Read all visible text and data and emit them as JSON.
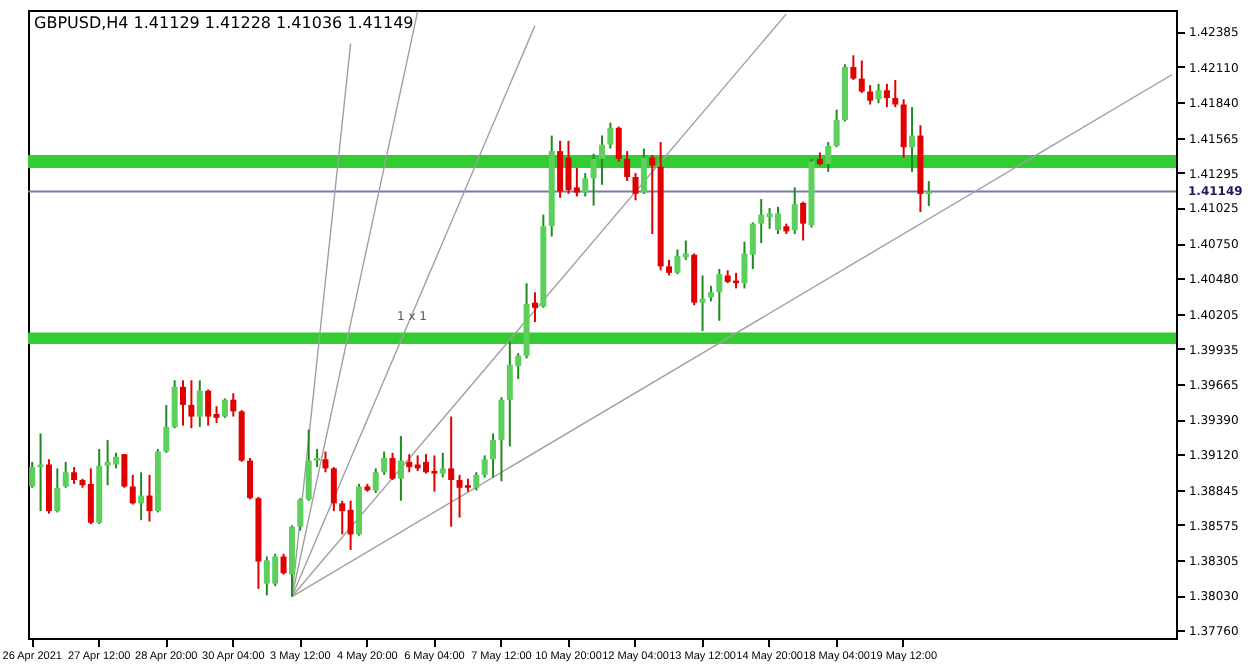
{
  "chart_data": {
    "type": "candlestick",
    "title": "GBPUSD,H4 1.41129 1.41228 1.41036 1.41149",
    "categories": [
      "26 Apr 2021",
      null,
      null,
      null,
      null,
      null,
      null,
      null,
      "27 Apr 12:00",
      null,
      null,
      null,
      null,
      null,
      null,
      null,
      "28 Apr 20:00",
      null,
      null,
      null,
      null,
      null,
      null,
      null,
      "30 Apr 04:00",
      null,
      null,
      null,
      null,
      null,
      null,
      null,
      "3 May 12:00",
      null,
      null,
      null,
      null,
      null,
      null,
      null,
      "4 May 20:00",
      null,
      null,
      null,
      null,
      null,
      null,
      null,
      "6 May 04:00",
      null,
      null,
      null,
      null,
      null,
      null,
      null,
      "7 May 12:00",
      null,
      null,
      null,
      null,
      null,
      null,
      null,
      "10 May 20:00",
      null,
      null,
      null,
      null,
      null,
      null,
      null,
      "12 May 04:00",
      null,
      null,
      null,
      null,
      null,
      null,
      null,
      "13 May 12:00",
      null,
      null,
      null,
      null,
      null,
      null,
      null,
      "14 May 20:00",
      null,
      null,
      null,
      null,
      null,
      null,
      null,
      "18 May 04:00",
      null,
      null,
      null,
      null,
      null,
      null,
      null,
      "19 May 12:00",
      null,
      null,
      null,
      null,
      null,
      null,
      null,
      null,
      null,
      null,
      null,
      null,
      null,
      null,
      null,
      null,
      null,
      null,
      null,
      null,
      null,
      null,
      null,
      null,
      null,
      null,
      null,
      null,
      null,
      null,
      null,
      null
    ],
    "ohlc": [
      [
        1.3887,
        1.3906,
        1.3886,
        1.3902
      ],
      [
        1.3902,
        1.3928,
        1.3868,
        1.3904
      ],
      [
        1.3904,
        1.3908,
        1.3866,
        1.3868
      ],
      [
        1.3868,
        1.3901,
        1.3867,
        1.3886
      ],
      [
        1.3887,
        1.3906,
        1.3886,
        1.3898
      ],
      [
        1.3898,
        1.3902,
        1.3889,
        1.3892
      ],
      [
        1.3892,
        1.3893,
        1.3886,
        1.3888
      ],
      [
        1.3889,
        1.3901,
        1.3858,
        1.3859
      ],
      [
        1.3859,
        1.3916,
        1.3858,
        1.3903
      ],
      [
        1.3903,
        1.3923,
        1.3888,
        1.3906
      ],
      [
        1.3904,
        1.3913,
        1.3901,
        1.391
      ],
      [
        1.3912,
        1.3912,
        1.3886,
        1.3887
      ],
      [
        1.3887,
        1.3896,
        1.3873,
        1.3874
      ],
      [
        1.3874,
        1.3898,
        1.3861,
        1.388
      ],
      [
        1.388,
        1.3896,
        1.386,
        1.3868
      ],
      [
        1.3868,
        1.3916,
        1.3867,
        1.3914
      ],
      [
        1.3914,
        1.395,
        1.3913,
        1.3933
      ],
      [
        1.3933,
        1.3969,
        1.3932,
        1.3964
      ],
      [
        1.3964,
        1.3969,
        1.3934,
        1.395
      ],
      [
        1.395,
        1.3969,
        1.3932,
        1.3941
      ],
      [
        1.3941,
        1.3969,
        1.3933,
        1.3961
      ],
      [
        1.3961,
        1.3962,
        1.3934,
        1.3941
      ],
      [
        1.3943,
        1.3949,
        1.3936,
        1.394
      ],
      [
        1.3941,
        1.3955,
        1.394,
        1.3954
      ],
      [
        1.3954,
        1.3959,
        1.3941,
        1.3945
      ],
      [
        1.3945,
        1.3946,
        1.3906,
        1.3907
      ],
      [
        1.3907,
        1.3909,
        1.3877,
        1.3878
      ],
      [
        1.3878,
        1.3879,
        1.3808,
        1.3829
      ],
      [
        1.3812,
        1.3833,
        1.3803,
        1.383
      ],
      [
        1.3812,
        1.3835,
        1.381,
        1.3833
      ],
      [
        1.3833,
        1.3835,
        1.3819,
        1.382
      ],
      [
        1.3819,
        1.3857,
        1.3802,
        1.3856
      ],
      [
        1.3856,
        1.3878,
        1.3853,
        1.3877
      ],
      [
        1.3877,
        1.3931,
        1.3876,
        1.3907
      ],
      [
        1.3907,
        1.3916,
        1.3902,
        1.3909
      ],
      [
        1.3908,
        1.3914,
        1.3898,
        1.3901
      ],
      [
        1.3901,
        1.3902,
        1.3868,
        1.3874
      ],
      [
        1.3874,
        1.3876,
        1.385,
        1.3868
      ],
      [
        1.3869,
        1.3876,
        1.3838,
        1.385
      ],
      [
        1.385,
        1.3889,
        1.3849,
        1.3887
      ],
      [
        1.3887,
        1.3889,
        1.3883,
        1.3884
      ],
      [
        1.3884,
        1.3901,
        1.3882,
        1.3898
      ],
      [
        1.3898,
        1.3914,
        1.3896,
        1.3909
      ],
      [
        1.3909,
        1.3913,
        1.3892,
        1.3893
      ],
      [
        1.3893,
        1.3926,
        1.3876,
        1.3907
      ],
      [
        1.3906,
        1.3912,
        1.3898,
        1.3902
      ],
      [
        1.3904,
        1.3911,
        1.3899,
        1.3901
      ],
      [
        1.3906,
        1.3912,
        1.3897,
        1.3898
      ],
      [
        1.3899,
        1.3911,
        1.3883,
        1.3897
      ],
      [
        1.3897,
        1.3913,
        1.3894,
        1.3901
      ],
      [
        1.3901,
        1.3941,
        1.3856,
        1.3892
      ],
      [
        1.3892,
        1.3896,
        1.3863,
        1.3886
      ],
      [
        1.3888,
        1.3893,
        1.3883,
        1.3886
      ],
      [
        1.3886,
        1.3898,
        1.3884,
        1.3896
      ],
      [
        1.3896,
        1.3911,
        1.3894,
        1.3908
      ],
      [
        1.3908,
        1.3928,
        1.3894,
        1.3923
      ],
      [
        1.3923,
        1.3956,
        1.3891,
        1.3954
      ],
      [
        1.3954,
        1.3999,
        1.3918,
        1.3981
      ],
      [
        1.398,
        1.399,
        1.397,
        1.3988
      ],
      [
        1.3988,
        1.4044,
        1.3986,
        1.4028
      ],
      [
        1.4029,
        1.4037,
        1.4014,
        1.4025
      ],
      [
        1.4026,
        1.4097,
        1.4025,
        1.4088
      ],
      [
        1.4088,
        1.4158,
        1.408,
        1.4146
      ],
      [
        1.4146,
        1.4154,
        1.411,
        1.4115
      ],
      [
        1.4141,
        1.4154,
        1.4113,
        1.4116
      ],
      [
        1.4118,
        1.4133,
        1.4111,
        1.4114
      ],
      [
        1.4114,
        1.4129,
        1.4111,
        1.4125
      ],
      [
        1.4125,
        1.4144,
        1.4104,
        1.414
      ],
      [
        1.414,
        1.4158,
        1.412,
        1.4151
      ],
      [
        1.4151,
        1.4168,
        1.4148,
        1.4164
      ],
      [
        1.4164,
        1.4165,
        1.4138,
        1.414
      ],
      [
        1.414,
        1.4146,
        1.4123,
        1.4126
      ],
      [
        1.4126,
        1.4129,
        1.4108,
        1.4113
      ],
      [
        1.4114,
        1.4148,
        1.4113,
        1.4141
      ],
      [
        1.4141,
        1.4143,
        1.4082,
        1.4135
      ],
      [
        1.4134,
        1.4153,
        1.4054,
        1.4057
      ],
      [
        1.4057,
        1.4062,
        1.405,
        1.4052
      ],
      [
        1.4052,
        1.407,
        1.4051,
        1.4065
      ],
      [
        1.4064,
        1.4077,
        1.4062,
        1.4067
      ],
      [
        1.4066,
        1.4067,
        1.4027,
        1.4029
      ],
      [
        1.4029,
        1.405,
        1.4007,
        1.4032
      ],
      [
        1.4033,
        1.4042,
        1.403,
        1.4037
      ],
      [
        1.4037,
        1.4055,
        1.4015,
        1.4051
      ],
      [
        1.405,
        1.4054,
        1.4044,
        1.4045
      ],
      [
        1.4046,
        1.4052,
        1.404,
        1.4044
      ],
      [
        1.4044,
        1.4076,
        1.404,
        1.4067
      ],
      [
        1.4066,
        1.4091,
        1.4055,
        1.409
      ],
      [
        1.409,
        1.4109,
        1.4075,
        1.4097
      ],
      [
        1.4095,
        1.4102,
        1.4086,
        1.4098
      ],
      [
        1.4085,
        1.4103,
        1.4082,
        1.4098
      ],
      [
        1.4088,
        1.409,
        1.4082,
        1.4084
      ],
      [
        1.4085,
        1.4118,
        1.4082,
        1.4105
      ],
      [
        1.4106,
        1.4107,
        1.4077,
        1.409
      ],
      [
        1.4089,
        1.414,
        1.4087,
        1.4138
      ],
      [
        1.414,
        1.4145,
        1.4135,
        1.4136
      ],
      [
        1.4136,
        1.4153,
        1.413,
        1.415
      ],
      [
        1.415,
        1.4178,
        1.4149,
        1.417
      ],
      [
        1.417,
        1.4213,
        1.4169,
        1.4211
      ],
      [
        1.4211,
        1.422,
        1.4201,
        1.4202
      ],
      [
        1.4202,
        1.4216,
        1.4191,
        1.4192
      ],
      [
        1.4192,
        1.4197,
        1.4182,
        1.4185
      ],
      [
        1.4186,
        1.4198,
        1.4183,
        1.4193
      ],
      [
        1.4193,
        1.4198,
        1.418,
        1.4187
      ],
      [
        1.4187,
        1.4201,
        1.418,
        1.4182
      ],
      [
        1.4182,
        1.4186,
        1.4141,
        1.4149
      ],
      [
        1.4149,
        1.418,
        1.413,
        1.4158
      ],
      [
        1.4158,
        1.4166,
        1.4099,
        1.4113
      ],
      [
        1.41129,
        1.41228,
        1.41036,
        1.41149
      ],
      null,
      null,
      null,
      null,
      null,
      null,
      null,
      null,
      null,
      null,
      null,
      null,
      null,
      null,
      null,
      null,
      null,
      null,
      null,
      null,
      null,
      null,
      null,
      null,
      null,
      null,
      null,
      null,
      null
    ],
    "series": [
      {
        "type": "line",
        "color": "#a0a0a0",
        "values": [
          null,
          null,
          null,
          null,
          null,
          null,
          null,
          null,
          null,
          null,
          null,
          null,
          null,
          null,
          null,
          null,
          null,
          null,
          null,
          null,
          null,
          null,
          null,
          null,
          null,
          null,
          null,
          null,
          null,
          null,
          null,
          1.3802,
          null,
          null,
          null,
          null,
          null,
          null,
          1.4229,
          null,
          null,
          null,
          null,
          null,
          null,
          null,
          null,
          null,
          null,
          null,
          null,
          null,
          null,
          null,
          null,
          null,
          null,
          null,
          null,
          null,
          null,
          null,
          null,
          null,
          null,
          null,
          null,
          null,
          null,
          null,
          null,
          null,
          null,
          null,
          null,
          null,
          null,
          null,
          null,
          null,
          null,
          null,
          null,
          null,
          null,
          null,
          null,
          null,
          null,
          null,
          null,
          null,
          null,
          null,
          null,
          null,
          null,
          null,
          null,
          null,
          null,
          null,
          null,
          null,
          null,
          null,
          null,
          null,
          null,
          null,
          null,
          null,
          null,
          null,
          null,
          null,
          null,
          null,
          null,
          null,
          null,
          null,
          null,
          null,
          null,
          null,
          null,
          null,
          null,
          null,
          null,
          null,
          null,
          null,
          null,
          null,
          null
        ]
      },
      {
        "type": "line",
        "color": "#a0a0a0",
        "values": [
          null,
          null,
          null,
          null,
          null,
          null,
          null,
          null,
          null,
          null,
          null,
          null,
          null,
          null,
          null,
          null,
          null,
          null,
          null,
          null,
          null,
          null,
          null,
          null,
          null,
          null,
          null,
          null,
          null,
          null,
          null,
          1.3802,
          null,
          null,
          null,
          null,
          null,
          null,
          null,
          null,
          null,
          null,
          null,
          null,
          null,
          null,
          1.4254,
          null,
          null,
          null,
          null,
          null,
          null,
          null,
          null,
          null,
          null,
          null,
          null,
          null,
          null,
          null,
          null,
          null,
          null,
          null,
          null,
          null,
          null,
          null,
          null,
          null,
          null,
          null,
          null,
          null,
          null,
          null,
          null,
          null,
          null,
          null,
          null,
          null,
          null,
          null,
          null,
          null,
          null,
          null,
          null,
          null,
          null,
          null,
          null,
          null,
          null,
          null,
          null,
          null,
          null,
          null,
          null,
          null,
          null,
          null,
          null,
          null,
          null,
          null,
          null,
          null,
          null,
          null,
          null,
          null,
          null,
          null,
          null,
          null,
          null,
          null,
          null,
          null,
          null,
          null,
          null,
          null,
          null,
          null,
          null,
          null,
          null,
          null,
          null,
          null,
          null
        ]
      },
      {
        "type": "line",
        "color": "#a0a0a0",
        "values": [
          null,
          null,
          null,
          null,
          null,
          null,
          null,
          null,
          null,
          null,
          null,
          null,
          null,
          null,
          null,
          null,
          null,
          null,
          null,
          null,
          null,
          null,
          null,
          null,
          null,
          null,
          null,
          null,
          null,
          null,
          null,
          1.3802,
          null,
          null,
          null,
          null,
          null,
          null,
          null,
          null,
          null,
          null,
          null,
          null,
          null,
          null,
          null,
          null,
          null,
          null,
          null,
          null,
          null,
          null,
          null,
          null,
          null,
          null,
          null,
          null,
          1.4243,
          null,
          null,
          null,
          null,
          null,
          null,
          null,
          null,
          null,
          null,
          null,
          null,
          null,
          null,
          null,
          null,
          null,
          null,
          null,
          null,
          null,
          null,
          null,
          null,
          null,
          null,
          null,
          null,
          null,
          null,
          null,
          null,
          null,
          null,
          null,
          null,
          null,
          null,
          null,
          null,
          null,
          null,
          null,
          null,
          null,
          null,
          null,
          null,
          null,
          null,
          null,
          null,
          null,
          null,
          null,
          null,
          null,
          null,
          null,
          null,
          null,
          null,
          null,
          null,
          null,
          null,
          null,
          null,
          null,
          null,
          null,
          null,
          null,
          null,
          null,
          null
        ]
      },
      {
        "type": "line",
        "color": "#a0a0a0",
        "values": [
          null,
          null,
          null,
          null,
          null,
          null,
          null,
          null,
          null,
          null,
          null,
          null,
          null,
          null,
          null,
          null,
          null,
          null,
          null,
          null,
          null,
          null,
          null,
          null,
          null,
          null,
          null,
          null,
          null,
          null,
          null,
          1.3802,
          null,
          null,
          null,
          null,
          null,
          null,
          null,
          null,
          null,
          null,
          null,
          null,
          null,
          null,
          null,
          null,
          null,
          null,
          null,
          null,
          null,
          null,
          null,
          null,
          null,
          null,
          null,
          null,
          null,
          null,
          null,
          null,
          null,
          null,
          null,
          null,
          null,
          null,
          null,
          null,
          null,
          null,
          null,
          null,
          null,
          null,
          null,
          null,
          null,
          null,
          null,
          null,
          null,
          null,
          null,
          null,
          null,
          null,
          1.4252,
          null,
          null,
          null,
          null,
          null,
          null,
          null,
          null,
          null,
          null,
          null,
          null,
          null,
          null,
          null,
          null,
          null,
          null,
          null,
          null,
          null,
          null,
          null,
          null,
          null,
          null,
          null,
          null,
          null,
          null,
          null,
          null,
          null,
          null,
          null,
          null,
          null,
          null,
          null,
          null,
          null,
          null,
          null,
          null,
          null,
          null
        ]
      },
      {
        "type": "line",
        "color": "#a0a0a0",
        "values": [
          null,
          null,
          null,
          null,
          null,
          null,
          null,
          null,
          null,
          null,
          null,
          null,
          null,
          null,
          null,
          null,
          null,
          null,
          null,
          null,
          null,
          null,
          null,
          null,
          null,
          null,
          null,
          null,
          null,
          null,
          null,
          1.3802,
          null,
          null,
          null,
          null,
          null,
          null,
          null,
          null,
          null,
          null,
          null,
          null,
          null,
          null,
          null,
          null,
          null,
          null,
          null,
          null,
          null,
          null,
          null,
          null,
          null,
          null,
          null,
          null,
          null,
          null,
          null,
          null,
          null,
          null,
          null,
          null,
          null,
          null,
          null,
          null,
          null,
          null,
          null,
          null,
          null,
          null,
          null,
          null,
          null,
          null,
          null,
          null,
          null,
          null,
          null,
          null,
          null,
          null,
          null,
          null,
          null,
          null,
          null,
          null,
          null,
          null,
          null,
          null,
          null,
          null,
          null,
          null,
          null,
          null,
          null,
          null,
          null,
          null,
          null,
          null,
          null,
          null,
          null,
          null,
          null,
          null,
          null,
          null,
          null,
          null,
          null,
          null,
          null,
          null,
          null,
          null,
          null,
          null,
          null,
          null,
          null,
          null,
          null,
          null,
          1.4205
        ]
      }
    ],
    "ylim": [
      1.377,
      1.4255
    ],
    "yticks": [
      1.42385,
      {
        "value": 1.4211,
        "label": "1.42110"
      },
      {
        "value": 1.4184,
        "label": "1.41840"
      },
      1.41565,
      1.41295,
      1.41025,
      {
        "value": 1.4075,
        "label": "1.40750"
      },
      {
        "value": 1.4048,
        "label": "1.40480"
      },
      1.40205,
      1.39935,
      1.39665,
      {
        "value": 1.3939,
        "label": "1.39390"
      },
      {
        "value": 1.3912,
        "label": "1.39120"
      },
      1.38845,
      1.38575,
      1.38305,
      {
        "value": 1.3803,
        "label": "1.38030"
      },
      {
        "value": 1.3776,
        "label": "1.37760"
      }
    ],
    "ref_lines": [
      {
        "axis": "y",
        "value": 1.41149,
        "label": "1.41149",
        "color": "#7a7ab0"
      }
    ],
    "bands": [
      {
        "axis": "y",
        "from": 1.4133,
        "to": 1.4143,
        "color": "#33cc33"
      },
      {
        "axis": "y",
        "from": 1.3997,
        "to": 1.4006,
        "color": "#33cc33"
      }
    ],
    "annotations": [
      "1 x 1"
    ]
  }
}
